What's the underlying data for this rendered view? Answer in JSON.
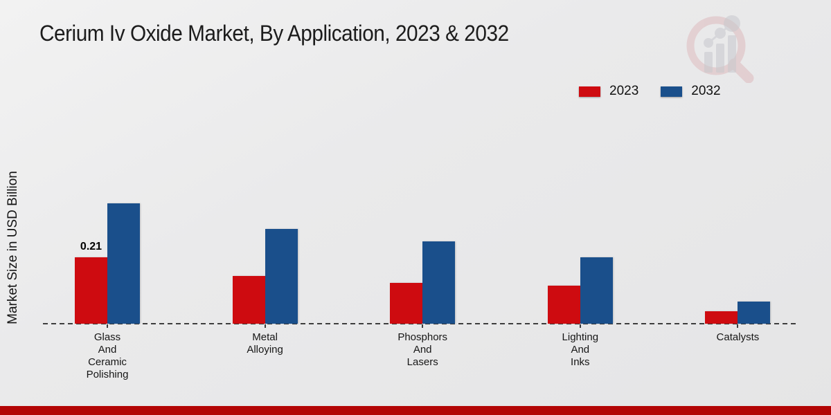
{
  "title": "Cerium Iv Oxide Market, By Application, 2023 & 2032",
  "ylabel": "Market Size in USD Billion",
  "legend": [
    {
      "label": "2023",
      "color": "#ce0b10"
    },
    {
      "label": "2032",
      "color": "#1a4f8b"
    }
  ],
  "annotation": {
    "text": "0.21",
    "series_index": 0,
    "category_index": 0
  },
  "branding": {
    "logo_name": "magnifier-bar-chart-watermark",
    "footer_bar_color": "#b30505",
    "logo_ring_color": "#d9a9ae",
    "logo_bar_color": "#c8c8cd"
  },
  "chart_data": {
    "type": "bar",
    "title": "Cerium Iv Oxide Market, By Application, 2023 & 2032",
    "xlabel": "",
    "ylabel": "Market Size in USD Billion",
    "categories": [
      "Glass And Ceramic Polishing",
      "Metal Alloying",
      "Phosphors And Lasers",
      "Lighting And Inks",
      "Catalysts"
    ],
    "category_label_lines": [
      "Glass\nAnd\nCeramic\nPolishing",
      "Metal\nAlloying",
      "Phosphors\nAnd\nLasers",
      "Lighting\nAnd\nInks",
      "Catalysts"
    ],
    "series": [
      {
        "name": "2023",
        "color": "#ce0b10",
        "values": [
          0.21,
          0.15,
          0.13,
          0.12,
          0.04
        ]
      },
      {
        "name": "2032",
        "color": "#1a4f8b",
        "values": [
          0.38,
          0.3,
          0.26,
          0.21,
          0.07
        ]
      }
    ],
    "ylim": [
      0,
      0.45
    ],
    "grid": false,
    "y_axis_ticks_visible": false,
    "baseline_style": "dashed",
    "legend_position": "top-right",
    "data_labels": [
      "0.21 shown on 2023 Glass And Ceramic Polishing bar only"
    ]
  }
}
